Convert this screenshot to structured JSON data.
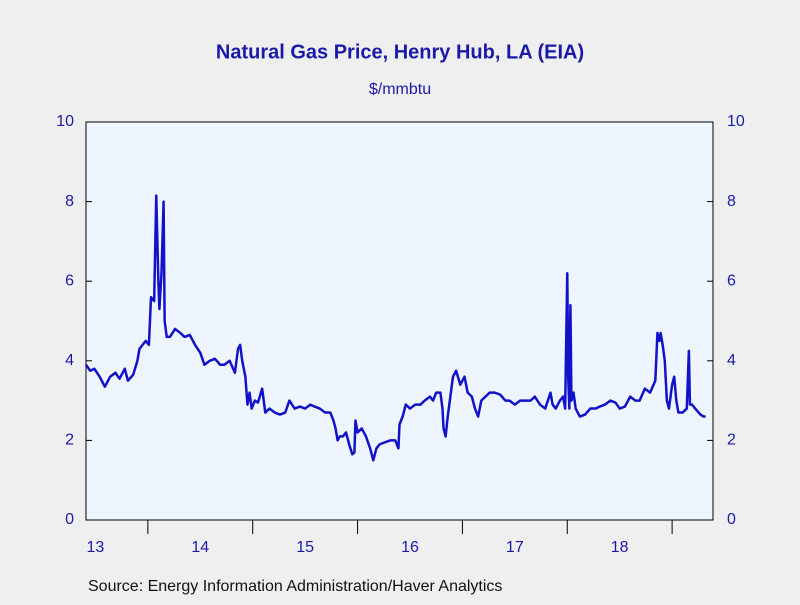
{
  "chart_data": {
    "type": "line",
    "title": "Natural Gas Price, Henry Hub, LA (EIA)",
    "subtitle": "$/mmbtu",
    "source": "Source:  Energy Information Administration/Haver Analytics",
    "x": [
      2013.41,
      2013.45,
      2013.49,
      2013.54,
      2013.59,
      2013.64,
      2013.69,
      2013.73,
      2013.78,
      2013.81,
      2013.86,
      2013.9,
      2013.92,
      2013.95,
      2013.98,
      2014.01,
      2014.03,
      2014.06,
      2014.08,
      2014.1,
      2014.11,
      2014.13,
      2014.15,
      2014.16,
      2014.18,
      2014.21,
      2014.26,
      2014.31,
      2014.35,
      2014.4,
      2014.45,
      2014.5,
      2014.54,
      2014.59,
      2014.64,
      2014.69,
      2014.73,
      2014.78,
      2014.83,
      2014.86,
      2014.88,
      2014.9,
      2014.93,
      2014.95,
      2014.97,
      2014.99,
      2015.02,
      2015.05,
      2015.09,
      2015.12,
      2015.16,
      2015.21,
      2015.26,
      2015.31,
      2015.35,
      2015.4,
      2015.45,
      2015.5,
      2015.55,
      2015.59,
      2015.64,
      2015.69,
      2015.74,
      2015.77,
      2015.79,
      2015.81,
      2015.83,
      2015.86,
      2015.89,
      2015.92,
      2015.95,
      2015.97,
      2015.98,
      2016.0,
      2016.04,
      2016.08,
      2016.12,
      2016.15,
      2016.18,
      2016.21,
      2016.26,
      2016.31,
      2016.36,
      2016.39,
      2016.4,
      2016.43,
      2016.46,
      2016.5,
      2016.55,
      2016.6,
      2016.64,
      2016.69,
      2016.72,
      2016.75,
      2016.79,
      2016.81,
      2016.82,
      2016.84,
      2016.86,
      2016.88,
      2016.91,
      2016.94,
      2016.98,
      2017.02,
      2017.05,
      2017.09,
      2017.12,
      2017.15,
      2017.18,
      2017.22,
      2017.26,
      2017.31,
      2017.36,
      2017.41,
      2017.45,
      2017.5,
      2017.55,
      2017.6,
      2017.65,
      2017.69,
      2017.74,
      2017.79,
      2017.84,
      2017.86,
      2017.89,
      2017.93,
      2017.96,
      2017.98,
      2018.0,
      2018.01,
      2018.02,
      2018.03,
      2018.04,
      2018.06,
      2018.08,
      2018.12,
      2018.17,
      2018.22,
      2018.27,
      2018.31,
      2018.36,
      2018.41,
      2018.46,
      2018.5,
      2018.55,
      2018.6,
      2018.65,
      2018.69,
      2018.74,
      2018.79,
      2018.84,
      2018.86,
      2018.88,
      2018.89,
      2018.91,
      2018.93,
      2018.95,
      2018.97,
      2019.0,
      2019.02,
      2019.04,
      2019.06,
      2019.1,
      2019.14,
      2019.16,
      2019.17,
      2019.19,
      2019.22,
      2019.27,
      2019.3,
      2019.32
    ],
    "series": [
      {
        "color": "#1212c8",
        "values": [
          3.9,
          3.75,
          3.8,
          3.6,
          3.35,
          3.6,
          3.7,
          3.55,
          3.8,
          3.5,
          3.65,
          4.0,
          4.3,
          4.4,
          4.5,
          4.4,
          5.6,
          5.5,
          8.15,
          6.0,
          5.3,
          6.2,
          8.0,
          5.0,
          4.6,
          4.6,
          4.8,
          4.7,
          4.6,
          4.65,
          4.4,
          4.2,
          3.9,
          4.0,
          4.05,
          3.9,
          3.9,
          4.0,
          3.7,
          4.3,
          4.4,
          4.0,
          3.6,
          2.9,
          3.2,
          2.8,
          3.0,
          2.95,
          3.3,
          2.7,
          2.8,
          2.7,
          2.65,
          2.7,
          3.0,
          2.8,
          2.85,
          2.8,
          2.9,
          2.85,
          2.8,
          2.7,
          2.7,
          2.5,
          2.3,
          2.0,
          2.1,
          2.1,
          2.2,
          1.9,
          1.65,
          1.7,
          2.5,
          2.2,
          2.3,
          2.1,
          1.8,
          1.5,
          1.8,
          1.9,
          1.95,
          2.0,
          2.0,
          1.8,
          2.4,
          2.6,
          2.9,
          2.8,
          2.9,
          2.9,
          3.0,
          3.1,
          3.0,
          3.2,
          3.2,
          2.8,
          2.3,
          2.1,
          2.6,
          3.0,
          3.6,
          3.75,
          3.4,
          3.6,
          3.2,
          3.1,
          2.8,
          2.6,
          3.0,
          3.1,
          3.2,
          3.2,
          3.15,
          3.0,
          3.0,
          2.9,
          3.0,
          3.0,
          3.0,
          3.1,
          2.9,
          2.8,
          3.2,
          2.9,
          2.8,
          3.0,
          3.1,
          2.8,
          6.2,
          3.5,
          2.8,
          5.4,
          3.0,
          3.2,
          2.8,
          2.6,
          2.65,
          2.8,
          2.8,
          2.85,
          2.9,
          3.0,
          2.95,
          2.8,
          2.85,
          3.1,
          3.0,
          3.0,
          3.3,
          3.2,
          3.5,
          4.7,
          4.5,
          4.7,
          4.4,
          4.0,
          3.0,
          2.8,
          3.4,
          3.6,
          3.0,
          2.7,
          2.7,
          2.8,
          4.25,
          2.9,
          2.9,
          2.8,
          2.65,
          2.6,
          2.6
        ]
      }
    ],
    "xlim": [
      2013.41,
      2019.39
    ],
    "xticks": [
      {
        "value": 2013.5,
        "label": "13"
      },
      {
        "value": 2014.5,
        "label": "14"
      },
      {
        "value": 2015.5,
        "label": "15"
      },
      {
        "value": 2016.5,
        "label": "16"
      },
      {
        "value": 2017.5,
        "label": "17"
      },
      {
        "value": 2018.5,
        "label": "18"
      }
    ],
    "xtick_marks": [
      2014,
      2015,
      2016,
      2017,
      2018,
      2019
    ],
    "ylim": [
      0,
      10
    ],
    "yticks": [
      0,
      2,
      4,
      6,
      8,
      10
    ],
    "y2lim": [
      0,
      10
    ],
    "y2ticks": [
      0,
      2,
      4,
      6,
      8,
      10
    ]
  }
}
